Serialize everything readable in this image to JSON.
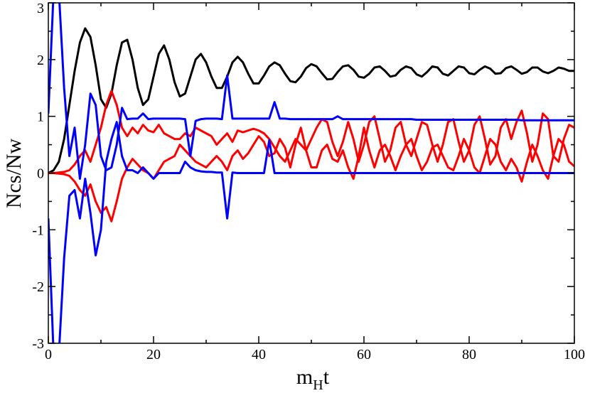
{
  "chart_data": {
    "type": "line",
    "ylabel": "Ncs/Nw",
    "xlabel": {
      "main": "m",
      "sub": "H",
      "tail": "t"
    },
    "xlim": [
      0,
      100
    ],
    "ylim": [
      -3,
      3
    ],
    "xticks": [
      0,
      20,
      40,
      60,
      80,
      100
    ],
    "yticks": [
      -3,
      -2,
      -1,
      0,
      1,
      2,
      3
    ],
    "xminorticks": [
      10,
      30,
      50,
      70,
      90
    ],
    "yminorticks": [
      -2.5,
      -1.5,
      -0.5,
      0.5,
      1.5,
      2.5
    ],
    "x": [
      0,
      1,
      2,
      3,
      4,
      5,
      6,
      7,
      8,
      9,
      10,
      11,
      12,
      13,
      14,
      15,
      16,
      17,
      18,
      19,
      20,
      21,
      22,
      23,
      24,
      25,
      26,
      27,
      28,
      29,
      30,
      31,
      32,
      33,
      34,
      35,
      36,
      37,
      38,
      39,
      40,
      41,
      42,
      43,
      44,
      45,
      46,
      47,
      48,
      49,
      50,
      51,
      52,
      53,
      54,
      55,
      56,
      57,
      58,
      59,
      60,
      61,
      62,
      63,
      64,
      65,
      66,
      67,
      68,
      69,
      70,
      71,
      72,
      73,
      74,
      75,
      76,
      77,
      78,
      79,
      80,
      81,
      82,
      83,
      84,
      85,
      86,
      87,
      88,
      89,
      90,
      91,
      92,
      93,
      94,
      95,
      96,
      97,
      98,
      99,
      100
    ],
    "series": [
      {
        "color": "#000000",
        "values": [
          0,
          0.05,
          0.2,
          0.6,
          1.2,
          1.8,
          2.3,
          2.55,
          2.4,
          1.9,
          1.3,
          1.15,
          1.4,
          1.9,
          2.3,
          2.35,
          2.0,
          1.5,
          1.2,
          1.3,
          1.7,
          2.1,
          2.25,
          2.0,
          1.6,
          1.35,
          1.4,
          1.7,
          2.0,
          2.1,
          1.95,
          1.7,
          1.5,
          1.5,
          1.7,
          1.95,
          2.05,
          1.95,
          1.75,
          1.58,
          1.58,
          1.72,
          1.88,
          1.95,
          1.9,
          1.75,
          1.62,
          1.6,
          1.7,
          1.85,
          1.92,
          1.88,
          1.76,
          1.65,
          1.66,
          1.78,
          1.88,
          1.9,
          1.82,
          1.7,
          1.68,
          1.75,
          1.86,
          1.88,
          1.8,
          1.7,
          1.72,
          1.82,
          1.88,
          1.85,
          1.74,
          1.7,
          1.78,
          1.88,
          1.86,
          1.75,
          1.72,
          1.8,
          1.88,
          1.86,
          1.76,
          1.74,
          1.82,
          1.88,
          1.84,
          1.75,
          1.76,
          1.85,
          1.88,
          1.82,
          1.75,
          1.78,
          1.86,
          1.86,
          1.79,
          1.76,
          1.8,
          1.86,
          1.84,
          1.8,
          1.8
        ]
      },
      {
        "color": "#ff0000",
        "values": [
          0,
          0,
          0.01,
          0.02,
          0.05,
          0.15,
          0.3,
          0.4,
          0.2,
          0.5,
          0.8,
          1.2,
          1.45,
          1.2,
          0.8,
          0.65,
          0.8,
          0.7,
          0.85,
          0.75,
          0.72,
          0.85,
          0.7,
          0.65,
          0.6,
          0.6,
          0.7,
          0.65,
          0.8,
          0.75,
          0.7,
          0.65,
          0.5,
          0.6,
          0.7,
          0.55,
          0.75,
          0.72,
          0.75,
          0.78,
          0.75,
          0.7,
          0.6,
          0.45,
          0.3,
          0.2,
          0.4,
          0.6,
          0.5,
          0.4,
          0.6,
          0.8,
          0.95,
          0.9,
          0.55,
          0.3,
          0.55,
          0.9,
          0.6,
          0.2,
          0.5,
          0.9,
          1.0,
          0.6,
          0.2,
          0.4,
          0.8,
          0.9,
          0.5,
          0.3,
          0.6,
          0.9,
          0.85,
          0.5,
          0.2,
          0.5,
          0.9,
          0.95,
          0.55,
          0.2,
          0.4,
          0.85,
          1.0,
          0.6,
          0.15,
          0.3,
          0.8,
          0.95,
          0.6,
          0.9,
          1.1,
          0.7,
          0.2,
          0.5,
          1.05,
          0.95,
          0.3,
          0.2,
          0.6,
          0.85,
          0.8
        ]
      },
      {
        "color": "#ff0000",
        "values": [
          0,
          0,
          -0.01,
          -0.02,
          -0.05,
          -0.15,
          -0.3,
          -0.4,
          -0.2,
          -0.5,
          -0.7,
          -0.6,
          -0.85,
          -0.5,
          -0.1,
          0.1,
          0.25,
          0.15,
          0.05,
          0.0,
          -0.1,
          0.05,
          0.2,
          0.25,
          0.3,
          0.5,
          0.4,
          0.3,
          0.2,
          0.15,
          0.1,
          0.2,
          0.3,
          0.2,
          0.05,
          0.3,
          0.4,
          0.25,
          0.35,
          0.5,
          0.65,
          0.55,
          0.3,
          0.35,
          0.6,
          0.45,
          0.1,
          0.5,
          0.8,
          0.4,
          0.1,
          0.1,
          0.4,
          0.5,
          0.25,
          0.2,
          0.4,
          0.1,
          -0.1,
          0.3,
          0.8,
          0.4,
          0.1,
          0.4,
          0.5,
          0.3,
          0.05,
          0.3,
          0.5,
          0.6,
          0.3,
          0.05,
          0.2,
          0.45,
          0.5,
          0.3,
          0.1,
          0.05,
          0.3,
          0.6,
          0.4,
          0.1,
          0.0,
          0.3,
          0.6,
          0.5,
          0.2,
          0.05,
          0.25,
          0.1,
          -0.15,
          0.2,
          0.5,
          0.3,
          0.05,
          -0.1,
          0.3,
          0.6,
          0.5,
          0.2,
          0.12
        ]
      },
      {
        "color": "#0000ff",
        "values": [
          1.05,
          3.2,
          3.2,
          1.5,
          0.3,
          0.8,
          -0.1,
          0.5,
          1.4,
          1.2,
          0.3,
          0.05,
          0.1,
          0.5,
          1.15,
          0.95,
          0.96,
          0.96,
          1.05,
          0.95,
          0.96,
          0.96,
          0.96,
          0.96,
          0.96,
          0.96,
          0.95,
          0.3,
          0.92,
          0.95,
          0.96,
          0.96,
          0.96,
          0.95,
          1.72,
          0.96,
          0.96,
          0.96,
          0.96,
          0.96,
          0.96,
          0.96,
          0.96,
          1.25,
          0.96,
          0.96,
          0.95,
          0.95,
          0.95,
          0.95,
          0.95,
          0.95,
          0.95,
          0.95,
          0.95,
          1.0,
          0.95,
          0.95,
          0.95,
          0.95,
          0.95,
          0.95,
          0.95,
          0.95,
          0.95,
          0.95,
          0.95,
          0.95,
          0.95,
          0.95,
          0.94,
          0.94,
          0.94,
          0.94,
          0.94,
          0.94,
          0.94,
          0.94,
          0.94,
          0.94,
          0.94,
          0.94,
          0.94,
          0.94,
          0.94,
          0.94,
          0.94,
          0.94,
          0.94,
          0.94,
          0.93,
          0.93,
          0.93,
          0.93,
          0.93,
          0.93,
          0.93,
          0.93,
          0.93,
          0.93,
          0.93
        ]
      },
      {
        "color": "#0000ff",
        "values": [
          -0.8,
          -3.2,
          -3.2,
          -1.5,
          -0.4,
          -0.3,
          -0.8,
          -0.1,
          -0.7,
          -1.45,
          -1.0,
          0.2,
          0.6,
          0.9,
          0.3,
          0.05,
          0.05,
          0,
          0.1,
          0,
          -0.1,
          0,
          0,
          0,
          0,
          0,
          0.2,
          0.1,
          0.05,
          0.03,
          0.02,
          0.02,
          0.01,
          0.01,
          -0.8,
          0.01,
          0,
          0,
          0,
          0,
          0,
          0,
          0.58,
          0,
          0,
          0,
          0,
          0,
          0,
          0,
          0,
          0,
          0,
          0,
          0,
          0,
          0,
          0,
          0,
          0,
          0,
          0,
          0,
          0,
          0,
          0,
          0,
          0,
          0,
          0,
          0,
          0,
          0,
          0,
          0,
          0,
          0,
          0,
          0,
          0,
          0,
          0,
          0,
          0,
          0,
          0,
          0,
          0,
          0,
          0,
          0,
          0,
          0,
          0,
          0,
          0,
          0,
          0,
          0,
          0,
          0
        ]
      }
    ]
  }
}
